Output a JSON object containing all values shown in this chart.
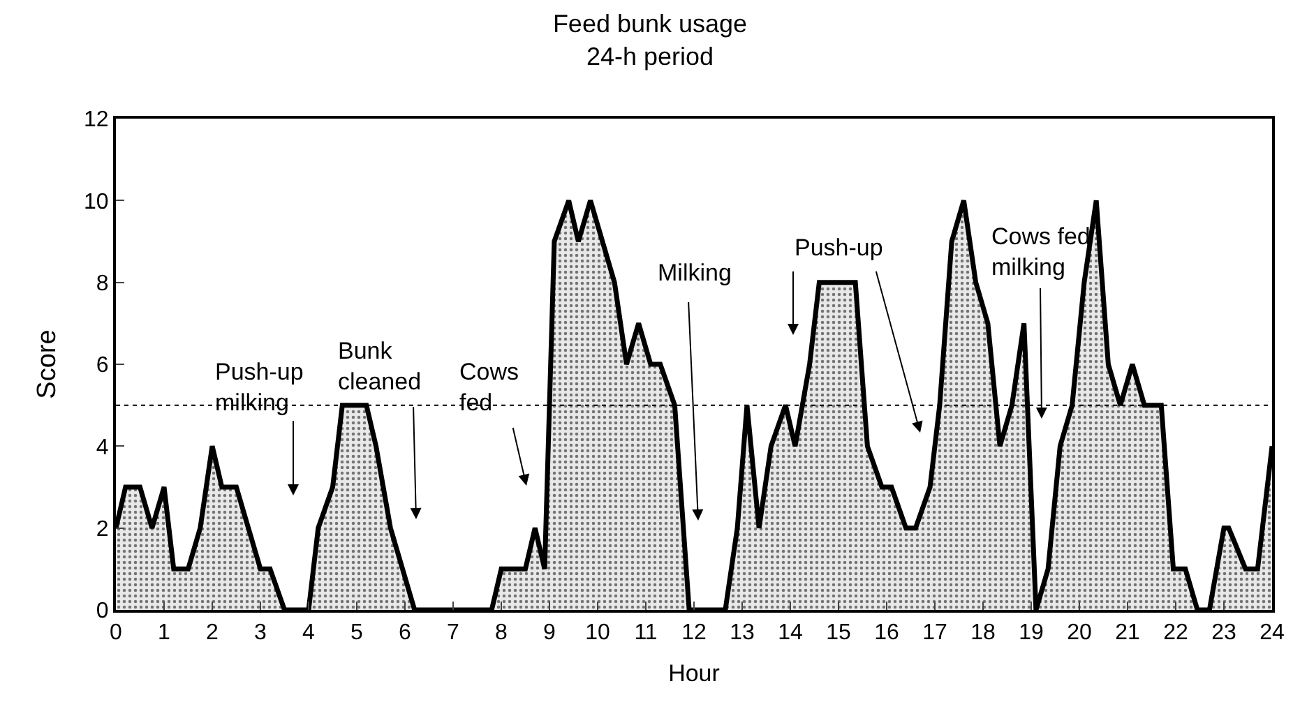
{
  "chart_data": {
    "type": "area",
    "title": "Feed bunk usage",
    "subtitle": "24-h period",
    "xlabel": "Hour",
    "ylabel": "Score",
    "series": [
      {
        "color": "#000000",
        "x": [
          0,
          0.2,
          0.5,
          0.75,
          1.0,
          1.2,
          1.5,
          1.75,
          2.0,
          2.2,
          2.5,
          2.75,
          3.0,
          3.2,
          3.5,
          4.0,
          4.2,
          4.5,
          4.7,
          5.2,
          5.4,
          5.7,
          6.2,
          7.8,
          8.0,
          8.5,
          8.7,
          8.9,
          9.1,
          9.4,
          9.6,
          9.85,
          10.1,
          10.35,
          10.6,
          10.85,
          11.1,
          11.3,
          11.6,
          11.9,
          12.65,
          12.9,
          13.1,
          13.35,
          13.6,
          13.9,
          14.1,
          14.4,
          14.6,
          15.35,
          15.6,
          15.9,
          16.1,
          16.4,
          16.6,
          16.9,
          17.1,
          17.35,
          17.6,
          17.85,
          18.1,
          18.35,
          18.6,
          18.85,
          19.1,
          19.35,
          19.6,
          19.85,
          20.1,
          20.35,
          20.6,
          20.85,
          21.1,
          21.35,
          21.7,
          21.95,
          22.2,
          22.45,
          22.7,
          23.0,
          23.1,
          23.45,
          23.7,
          24
        ],
        "values": [
          2,
          3,
          3,
          2,
          3,
          1,
          1,
          2,
          4,
          3,
          3,
          2,
          1,
          1,
          0,
          0,
          2,
          3,
          5,
          5,
          4,
          2,
          0,
          0,
          1,
          1,
          2,
          1,
          9,
          10,
          9,
          10,
          9,
          8,
          6,
          7,
          6,
          6,
          5,
          0,
          0,
          2,
          5,
          2,
          4,
          5,
          4,
          6,
          8,
          8,
          4,
          3,
          3,
          2,
          2,
          3,
          5,
          9,
          10,
          8,
          7,
          4,
          5,
          7,
          0,
          1,
          4,
          5,
          8,
          10,
          6,
          5,
          6,
          5,
          5,
          1,
          1,
          0,
          0,
          2,
          2,
          1,
          1,
          4
        ]
      }
    ],
    "xlim": [
      0,
      24
    ],
    "xticks": [
      0,
      1,
      2,
      3,
      4,
      5,
      6,
      7,
      8,
      9,
      10,
      11,
      12,
      13,
      14,
      15,
      16,
      17,
      18,
      19,
      20,
      21,
      22,
      23,
      24
    ],
    "ylim": [
      0,
      12
    ],
    "yticks": [
      0,
      2,
      4,
      6,
      8,
      10,
      12
    ],
    "ref_lines": [
      {
        "axis": "y",
        "value": 5,
        "color": "#000000",
        "line_style": "dotted"
      }
    ],
    "annotations": [
      "Push-up\nmilking",
      "Bunk\ncleaned",
      "Cows\nfed",
      "Milking",
      "Push-up",
      "Cows fed\nmilking"
    ]
  }
}
